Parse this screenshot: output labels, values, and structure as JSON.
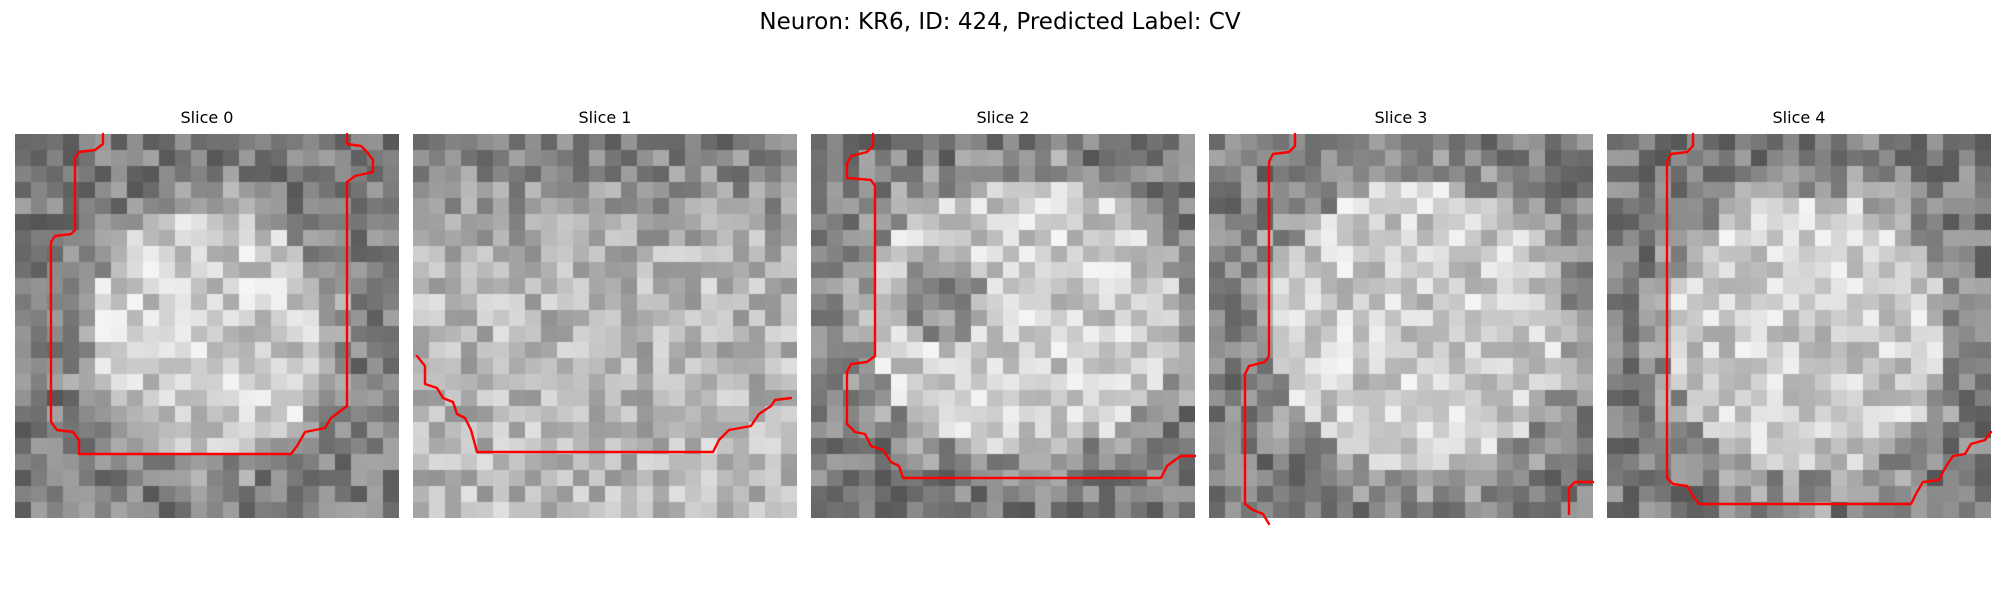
{
  "figure": {
    "title": "Neuron: KR6, ID: 424, Predicted Label: CV",
    "contour_color": "#ff0000",
    "grid_size": 24
  },
  "panels": [
    {
      "title": "Slice 0",
      "kind": "cell"
    },
    {
      "title": "Slice 1",
      "kind": "noise"
    },
    {
      "title": "Slice 2",
      "kind": "cell-nucleus"
    },
    {
      "title": "Slice 3",
      "kind": "cell"
    },
    {
      "title": "Slice 4",
      "kind": "cell"
    }
  ]
}
